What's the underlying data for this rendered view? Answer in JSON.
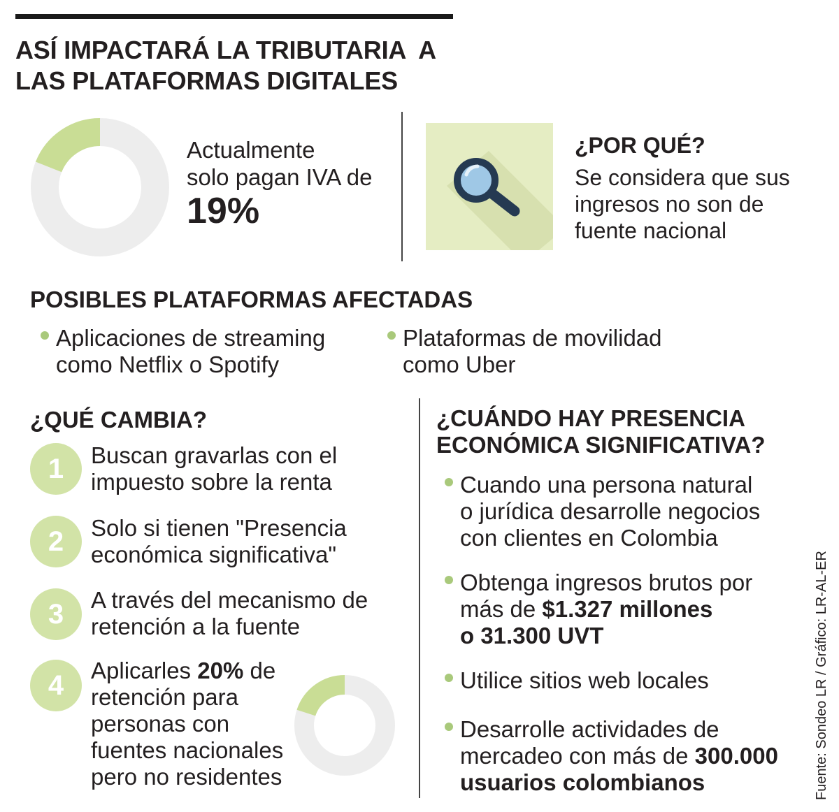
{
  "header": {
    "title_line1": "ASÍ IMPACTARÁ LA TRIBUTARIA  A",
    "title_line2": "LAS PLATAFORMAS DIGITALES"
  },
  "iva": {
    "line1": "Actualmente",
    "line2": "solo pagan IVA de",
    "value": "19%",
    "percent": 19
  },
  "why": {
    "icon": "magnifying-glass-icon",
    "title": "¿POR QUÉ?",
    "line1": "Se considera que sus",
    "line2": "ingresos no son de",
    "line3": "fuente nacional"
  },
  "platforms": {
    "title": "POSIBLES PLATAFORMAS AFECTADAS",
    "items": [
      {
        "line1": "Aplicaciones de streaming",
        "line2": "como Netflix o Spotify"
      },
      {
        "line1": "Plataformas de movilidad",
        "line2": "como Uber"
      }
    ]
  },
  "changes": {
    "title": "¿QUÉ CAMBIA?",
    "steps": [
      {
        "number": "1",
        "line1": "Buscan gravarlas con el",
        "line2": "impuesto sobre la renta"
      },
      {
        "number": "2",
        "line1": "Solo si tienen \"Presencia",
        "line2": "económica significativa\""
      },
      {
        "number": "3",
        "line1": "A través del mecanismo de",
        "line2": "retención a la fuente"
      },
      {
        "number": "4",
        "line1_pre": "Aplicarles ",
        "line1_bold": "20%",
        "line1_post": " de",
        "line2": "retención para",
        "line3": "personas con",
        "line4": "fuentes nacionales",
        "line5": "pero no residentes",
        "percent": 20
      }
    ]
  },
  "presence": {
    "title_line1": "¿CUÁNDO HAY PRESENCIA",
    "title_line2": "ECONÓMICA SIGNIFICATIVA?",
    "items": [
      {
        "line1": "Cuando una persona natural",
        "line2": "o jurídica desarrolle negocios",
        "line3": "con clientes en Colombia"
      },
      {
        "line1": "Obtenga ingresos brutos por",
        "line2_pre": "más de ",
        "line2_bold": "$1.327 millones",
        "line3_bold": "o 31.300 UVT"
      },
      {
        "line1": "Utilice sitios web locales"
      },
      {
        "line1": "Desarrolle actividades de",
        "line2_pre": "mercadeo con más de ",
        "line2_bold": "300.000",
        "line3_bold": "usuarios colombianos"
      }
    ]
  },
  "source": "Fuente: Sondeo LR / Gráfico: LR-AL-ER",
  "colors": {
    "accent_green": "#c9dd95",
    "ring_gray": "#ededed",
    "number_circle": "#d2e3a7",
    "icon_bg": "#e5edc3",
    "icon_navy": "#253a52",
    "icon_lens": "#9fc8e6",
    "bullet_dot": "#a9c97b"
  }
}
